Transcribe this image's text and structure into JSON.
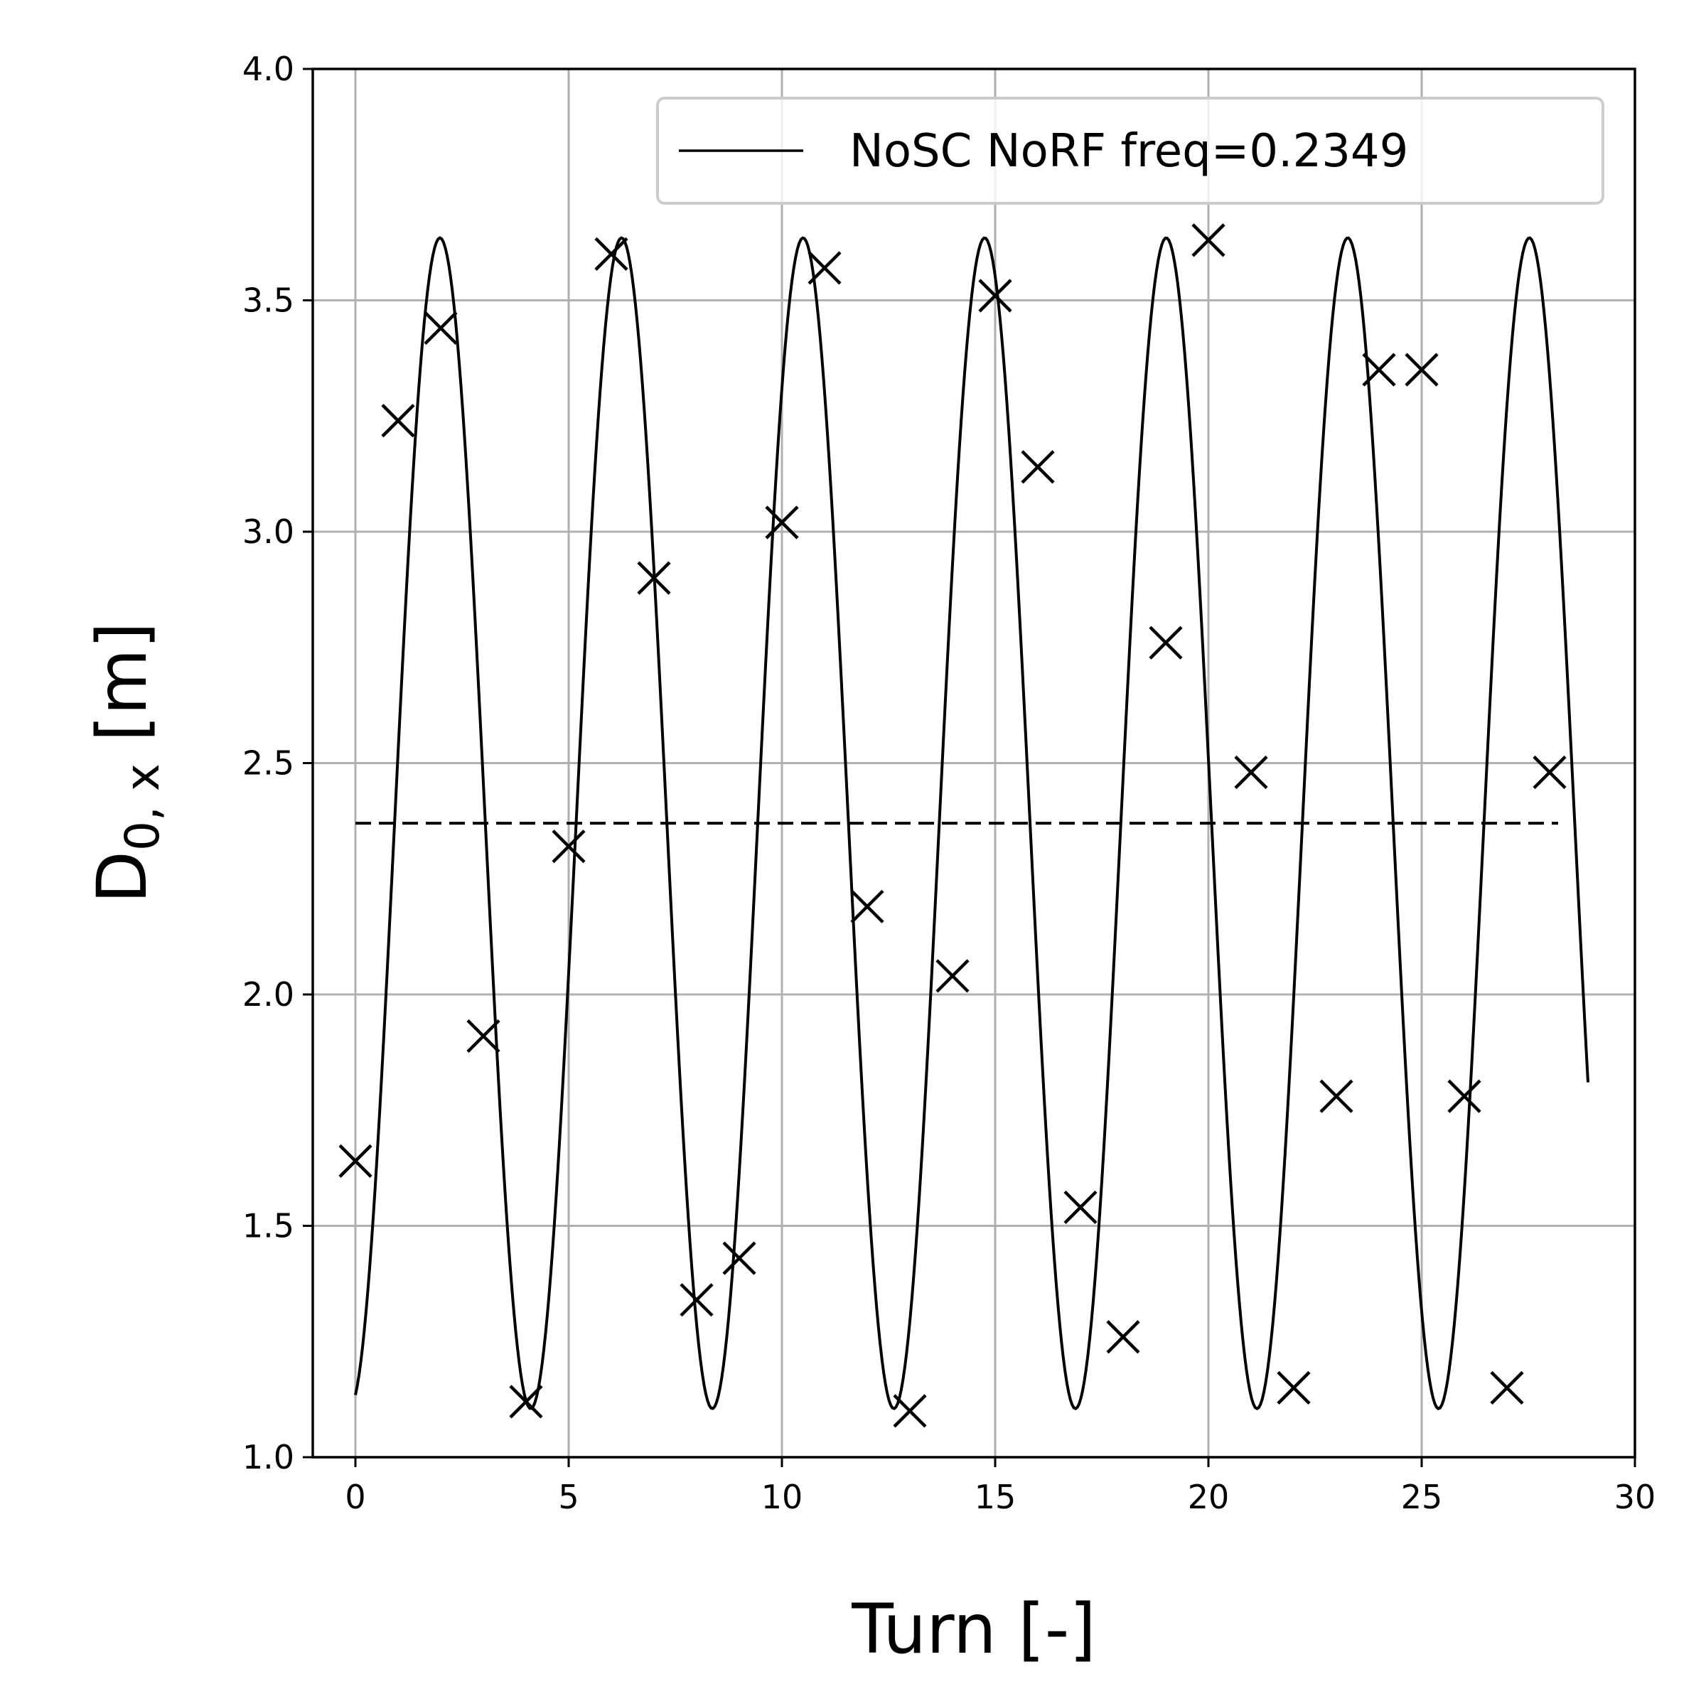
{
  "chart_data": {
    "type": "line",
    "xlabel": "Turn [-]",
    "ylabel_main": "D",
    "ylabel_sub": "0, x",
    "ylabel_unit": " [m]",
    "xlim": [
      -1,
      30
    ],
    "ylim": [
      1.0,
      4.0
    ],
    "xticks": [
      0,
      5,
      10,
      15,
      20,
      25,
      30
    ],
    "xtick_labels": [
      "0",
      "5",
      "10",
      "15",
      "20",
      "25",
      "30"
    ],
    "yticks": [
      1.0,
      1.5,
      2.0,
      2.5,
      3.0,
      3.5,
      4.0
    ],
    "ytick_labels": [
      "1.0",
      "1.5",
      "2.0",
      "2.5",
      "3.0",
      "3.5",
      "4.0"
    ],
    "grid": true,
    "legend_position": "top-right",
    "legend_entries": [
      "NoSC NoRF freq=0.2349"
    ],
    "fit": {
      "name": "NoSC NoRF freq=0.2349",
      "freq": 0.2349,
      "mean": 2.37,
      "amplitude": 1.265,
      "phase": 0.216,
      "x_start": 0,
      "x_end": 28.9,
      "color": "#000000"
    },
    "mean_line": {
      "y": 2.37,
      "x_start": 0,
      "x_end": 28.2,
      "style": "dashed"
    },
    "points": {
      "marker": "x",
      "x": [
        0,
        1,
        2,
        3,
        4,
        5,
        6,
        7,
        8,
        9,
        10,
        11,
        12,
        13,
        14,
        15,
        16,
        17,
        18,
        19,
        20,
        21,
        22,
        23,
        24,
        25,
        26,
        27,
        28
      ],
      "y": [
        1.64,
        3.24,
        3.44,
        1.91,
        1.12,
        2.32,
        3.6,
        2.9,
        1.34,
        1.43,
        3.02,
        3.57,
        2.19,
        1.1,
        2.04,
        3.51,
        3.14,
        1.54,
        1.26,
        2.76,
        3.63,
        2.48,
        1.15,
        1.78,
        3.35,
        3.35,
        1.78,
        1.15,
        2.48
      ]
    }
  }
}
